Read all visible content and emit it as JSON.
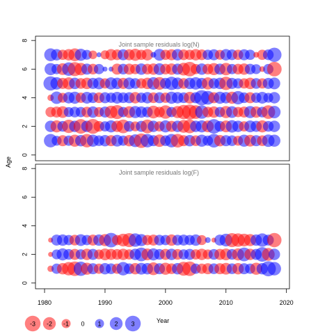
{
  "chart_data": {
    "type": "scatter",
    "description_kind": "bubble residual plot",
    "colors": {
      "positive": "#0000ff",
      "negative": "#ff0000",
      "alpha": 0.5
    },
    "shared": {
      "xlabel": "Year",
      "ylabel": "Age",
      "xlim": [
        1978.5,
        2020.5
      ],
      "ylim": [
        -0.4,
        8.3
      ],
      "x_ticks": [
        "1980",
        "1990",
        "2000",
        "2010",
        "2020"
      ],
      "y_ticks": [
        "0",
        "2",
        "4",
        "6",
        "8"
      ]
    },
    "legend": {
      "values": [
        -3,
        -2,
        -1,
        0,
        1,
        2,
        3
      ],
      "labels": [
        "-3",
        "-2",
        "-1",
        "0",
        "1",
        "2",
        "3"
      ]
    },
    "panels": [
      {
        "title": "Joint sample residuals log(N)",
        "years": [
          1981,
          1982,
          1983,
          1984,
          1985,
          1986,
          1987,
          1988,
          1989,
          1990,
          1991,
          1992,
          1993,
          1994,
          1995,
          1996,
          1997,
          1998,
          1999,
          2000,
          2001,
          2002,
          2003,
          2004,
          2005,
          2006,
          2007,
          2008,
          2009,
          2010,
          2011,
          2012,
          2013,
          2014,
          2015,
          2016,
          2017,
          2018
        ],
        "rows": [
          {
            "age": 1,
            "values": [
              2.2,
              1.2,
              -1.5,
              1.3,
              -1.8,
              1.6,
              -2.2,
              1.8,
              1.4,
              1.6,
              -1.5,
              1.7,
              1.3,
              -1.6,
              2.0,
              -2.6,
              2.2,
              1.5,
              -1.9,
              1.4,
              2.2,
              -2.3,
              -1.5,
              1.6,
              -1.4,
              1.8,
              1.3,
              2.3,
              -1.6,
              1.5,
              1.4,
              -1.2,
              1.8,
              -1.7,
              1.5,
              -1.4,
              1.9,
              1.8
            ]
          },
          {
            "age": 2,
            "values": [
              1.6,
              -1.8,
              1.4,
              -2.2,
              1.6,
              -2.6,
              1.6,
              -2.7,
              -1.4,
              1.3,
              1.8,
              -1.6,
              -2.3,
              1.4,
              -1.2,
              1.5,
              -2.3,
              1.6,
              -1.3,
              1.8,
              -1.5,
              1.6,
              -2.0,
              -2.3,
              1.6,
              1.8,
              -1.7,
              2.6,
              1.4,
              -1.7,
              1.9,
              1.6,
              -1.3,
              1.7,
              1.5,
              -1.8,
              1.4,
              1.6
            ]
          },
          {
            "age": 3,
            "values": [
              -1.3,
              -1.5,
              -1.7,
              1.2,
              1.4,
              1.3,
              -1.4,
              1.6,
              -1.2,
              1.5,
              -2.0,
              -2.4,
              1.3,
              -1.7,
              1.8,
              1.6,
              1.4,
              -2.0,
              -1.4,
              -2.2,
              1.3,
              -1.8,
              -2.5,
              -2.8,
              -2.3,
              2.2,
              -1.4,
              -1.6,
              1.3,
              -1.8,
              1.7,
              -1.3,
              -1.5,
              1.8,
              -1.6,
              1.4,
              -2.3,
              1.9
            ]
          },
          {
            "age": 4,
            "values": [
              -0.5,
              1.9,
              -1.2,
              1.6,
              1.8,
              -1.3,
              1.7,
              1.4,
              -1.4,
              1.5,
              1.3,
              1.7,
              1.4,
              1.5,
              -1.6,
              1.3,
              1.6,
              -1.4,
              1.5,
              -1.3,
              1.8,
              1.6,
              1.4,
              -1.7,
              1.5,
              2.8,
              2.3,
              -1.5,
              1.8,
              1.6,
              -1.8,
              2.2,
              1.4,
              -1.5,
              1.3,
              1.7,
              1.2,
              1.6
            ]
          },
          {
            "age": 5,
            "values": [
              2.5,
              1.9,
              -1.5,
              -1.8,
              1.6,
              -1.4,
              -1.6,
              1.5,
              1.7,
              -1.3,
              1.8,
              1.6,
              -1.5,
              1.7,
              1.4,
              -1.3,
              -1.6,
              1.9,
              -2.0,
              1.5,
              2.2,
              1.7,
              -1.4,
              1.6,
              1.9,
              1.5,
              -1.8,
              1.4,
              1.6,
              -2.2,
              1.5,
              1.3,
              -1.3,
              -1.6,
              1.4,
              -1.3,
              1.5,
              1.7
            ]
          },
          {
            "age": 6,
            "values": [
              1.8,
              1.3,
              -1.7,
              2.2,
              -2.4,
              -1.9,
              1.5,
              -1.4,
              1.3,
              0.3,
              0.3,
              -1.5,
              1.4,
              -1.5,
              -1.3,
              1.6,
              -1.4,
              -1.6,
              1.7,
              -1.4,
              -1.6,
              1.5,
              -2.0,
              -2.6,
              -1.3,
              1.6,
              -1.4,
              -1.8,
              1.5,
              -1.9,
              1.3,
              -1.4,
              -1.6,
              1.4,
              1.2,
              -0.4,
              1.3,
              -2.6
            ]
          },
          {
            "age": 7,
            "values": [
              2.0,
              1.6,
              -1.3,
              -1.6,
              -2.0,
              1.8,
              1.2,
              -0.9,
              0.3,
              -1.0,
              -1.6,
              -1.4,
              1.5,
              -1.5,
              -1.8,
              -1.3,
              -1.6,
              0.4,
              1.7,
              -1.3,
              -1.5,
              1.6,
              -1.4,
              -1.3,
              -1.6,
              -1.4,
              1.3,
              1.5,
              -1.2,
              1.6,
              1.4,
              -1.3,
              1.5,
              1.3,
              -0.4,
              -1.3,
              1.4,
              2.5
            ]
          }
        ]
      },
      {
        "title": "Joint sample residuals log(F)",
        "years": [
          1981,
          1982,
          1983,
          1984,
          1985,
          1986,
          1987,
          1988,
          1989,
          1990,
          1991,
          1992,
          1993,
          1994,
          1995,
          1996,
          1997,
          1998,
          1999,
          2000,
          2001,
          2002,
          2003,
          2004,
          2005,
          2006,
          2007,
          2008,
          2009,
          2010,
          2011,
          2012,
          2013,
          2014,
          2015,
          2016,
          2017,
          2018
        ],
        "rows": [
          {
            "age": 1,
            "values": [
              -0.5,
              1.3,
              -1.6,
              -2.2,
              -2.6,
              2.5,
              -1.8,
              1.5,
              -1.3,
              1.6,
              1.4,
              -1.3,
              2.2,
              1.4,
              -1.6,
              1.7,
              1.6,
              -2.0,
              1.5,
              -1.8,
              -1.4,
              1.6,
              -2.4,
              -2.6,
              1.3,
              -1.3,
              -1.5,
              1.4,
              -1.5,
              -1.7,
              1.4,
              -1.6,
              1.5,
              1.3,
              -1.8,
              1.6,
              2.8,
              2.2
            ]
          },
          {
            "age": 2,
            "values": [
              -0.3,
              1.2,
              1.8,
              1.4,
              -1.5,
              1.3,
              -1.6,
              1.5,
              -1.2,
              -1.7,
              -1.5,
              -1.4,
              -1.6,
              -1.3,
              1.6,
              2.3,
              -1.7,
              1.8,
              1.4,
              -1.5,
              1.6,
              -1.4,
              1.3,
              1.5,
              -1.3,
              -1.6,
              -1.2,
              1.4,
              -1.5,
              -1.7,
              1.4,
              -1.8,
              2.3,
              -1.6,
              1.5,
              2.6,
              -2.0,
              1.6
            ]
          },
          {
            "age": 3,
            "values": [
              -0.3,
              1.5,
              1.6,
              1.3,
              -1.4,
              1.7,
              1.3,
              -1.5,
              1.6,
              -1.8,
              2.6,
              -1.3,
              -2.0,
              -2.4,
              2.2,
              1.8,
              -1.3,
              -1.5,
              1.4,
              1.3,
              -1.6,
              1.4,
              1.5,
              1.3,
              1.6,
              -1.2,
              0.4,
              -0.3,
              1.5,
              2.0,
              -2.4,
              -2.2,
              -2.0,
              -1.8,
              1.6,
              2.2,
              1.5,
              -2.5
            ]
          }
        ]
      }
    ]
  }
}
